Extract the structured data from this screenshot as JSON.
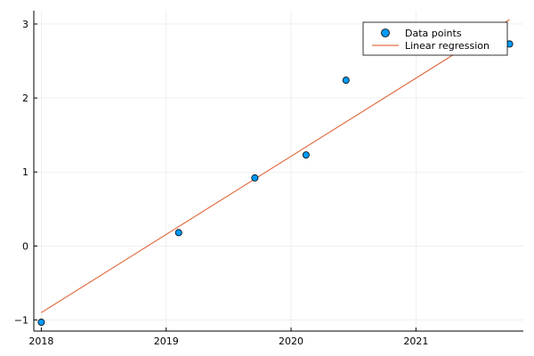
{
  "chart_data": {
    "type": "scatter",
    "title": "",
    "xlabel": "",
    "ylabel": "",
    "xlim": [
      2017.94,
      2021.86
    ],
    "ylim": [
      -1.15,
      3.18
    ],
    "x_ticks": [
      2018,
      2019,
      2020,
      2021
    ],
    "x_tick_labels": [
      "2018",
      "2019",
      "2020",
      "2021"
    ],
    "y_ticks": [
      -1,
      0,
      1,
      2,
      3
    ],
    "y_tick_labels": [
      "−1",
      "0",
      "1",
      "2",
      "3"
    ],
    "grid": true,
    "legend_position": "top-right",
    "series": [
      {
        "name": "Data points",
        "kind": "scatter",
        "color": "#009AFA",
        "x": [
          2018.0,
          2019.1,
          2019.71,
          2020.12,
          2020.44,
          2021.75
        ],
        "y": [
          -1.03,
          0.18,
          0.92,
          1.23,
          2.24,
          2.73
        ]
      },
      {
        "name": "Linear regression",
        "kind": "line",
        "color": "#E26F46",
        "x": [
          2018.0,
          2021.75
        ],
        "y": [
          -0.9,
          3.06
        ]
      }
    ]
  }
}
